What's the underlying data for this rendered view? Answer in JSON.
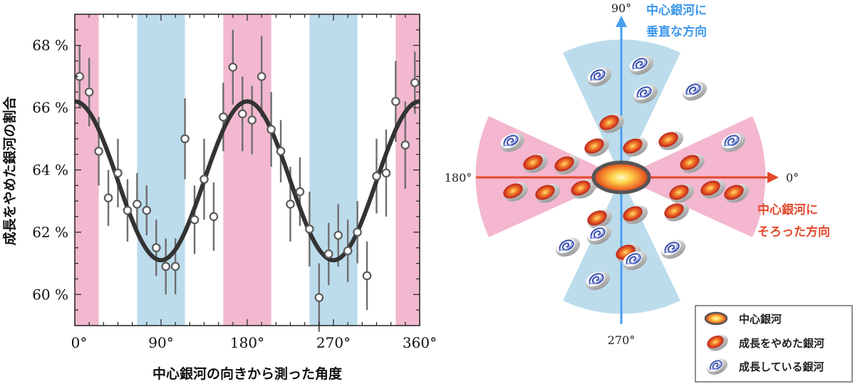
{
  "chart_data": {
    "type": "scatter",
    "xlabel": "中心銀河の向きから測った角度",
    "ylabel": "成長をやめた銀河の割合",
    "xlim": [
      0,
      360
    ],
    "ylim": [
      59,
      69
    ],
    "x_ticks": [
      "0°",
      "90°",
      "180°",
      "270°",
      "360°"
    ],
    "y_ticks": [
      "60 %",
      "62 %",
      "64 %",
      "66 %",
      "68 %"
    ],
    "bands": [
      {
        "from": 0,
        "to": 25,
        "color": "#f2b8cf"
      },
      {
        "from": 65,
        "to": 115,
        "color": "#bcdcec"
      },
      {
        "from": 155,
        "to": 205,
        "color": "#f2b8cf"
      },
      {
        "from": 245,
        "to": 295,
        "color": "#bcdcec"
      },
      {
        "from": 335,
        "to": 360,
        "color": "#f2b8cf"
      }
    ],
    "series": [
      {
        "points": [
          {
            "x": 5,
            "y": 67.0,
            "err": 1.0
          },
          {
            "x": 15,
            "y": 66.5,
            "err": 1.1
          },
          {
            "x": 25,
            "y": 64.6,
            "err": 1.1
          },
          {
            "x": 35,
            "y": 63.1,
            "err": 0.9
          },
          {
            "x": 45,
            "y": 63.9,
            "err": 1.1
          },
          {
            "x": 55,
            "y": 62.7,
            "err": 1.0
          },
          {
            "x": 65,
            "y": 62.9,
            "err": 1.0
          },
          {
            "x": 75,
            "y": 62.7,
            "err": 0.8
          },
          {
            "x": 85,
            "y": 61.5,
            "err": 0.9
          },
          {
            "x": 95,
            "y": 60.9,
            "err": 0.9
          },
          {
            "x": 105,
            "y": 60.9,
            "err": 0.9
          },
          {
            "x": 115,
            "y": 65.0,
            "err": 1.3
          },
          {
            "x": 125,
            "y": 62.4,
            "err": 1.1
          },
          {
            "x": 135,
            "y": 63.7,
            "err": 1.3
          },
          {
            "x": 145,
            "y": 62.5,
            "err": 1.1
          },
          {
            "x": 155,
            "y": 65.7,
            "err": 1.1
          },
          {
            "x": 165,
            "y": 67.3,
            "err": 1.2
          },
          {
            "x": 175,
            "y": 65.8,
            "err": 1.2
          },
          {
            "x": 185,
            "y": 65.6,
            "err": 1.1
          },
          {
            "x": 195,
            "y": 67.0,
            "err": 1.3
          },
          {
            "x": 205,
            "y": 65.3,
            "err": 1.2
          },
          {
            "x": 215,
            "y": 64.6,
            "err": 1.0
          },
          {
            "x": 225,
            "y": 62.9,
            "err": 1.2
          },
          {
            "x": 235,
            "y": 63.3,
            "err": 1.1
          },
          {
            "x": 245,
            "y": 62.1,
            "err": 1.2
          },
          {
            "x": 255,
            "y": 59.9,
            "err": 1.1
          },
          {
            "x": 265,
            "y": 61.3,
            "err": 1.0
          },
          {
            "x": 275,
            "y": 61.9,
            "err": 1.0
          },
          {
            "x": 285,
            "y": 61.4,
            "err": 1.0
          },
          {
            "x": 295,
            "y": 62.0,
            "err": 1.0
          },
          {
            "x": 305,
            "y": 60.6,
            "err": 1.1
          },
          {
            "x": 315,
            "y": 63.8,
            "err": 1.2
          },
          {
            "x": 325,
            "y": 63.9,
            "err": 1.4
          },
          {
            "x": 335,
            "y": 66.2,
            "err": 1.3
          },
          {
            "x": 345,
            "y": 64.8,
            "err": 1.4
          },
          {
            "x": 355,
            "y": 66.8,
            "err": 1.0
          }
        ]
      }
    ],
    "fit_curve": {
      "mean": 63.65,
      "amplitude": 2.55,
      "period_deg": 180
    }
  },
  "diagram": {
    "angle_90": "90°",
    "angle_180": "180°",
    "angle_0": "0°",
    "angle_270": "270°",
    "perp_label_1": "中心銀河に",
    "perp_label_2": "垂直な方向",
    "aligned_label_1": "中心銀河に",
    "aligned_label_2": "そろった方向",
    "legend": [
      "中心銀河",
      "成長をやめた銀河",
      "成長している銀河"
    ],
    "colors": {
      "pink": "#f4b7cf",
      "blue": "#bcdcec",
      "axis_blue": "#4a9ff0",
      "axis_red": "#e3482a",
      "label_blue": "#3b97ea",
      "label_red": "#e3492b"
    }
  }
}
